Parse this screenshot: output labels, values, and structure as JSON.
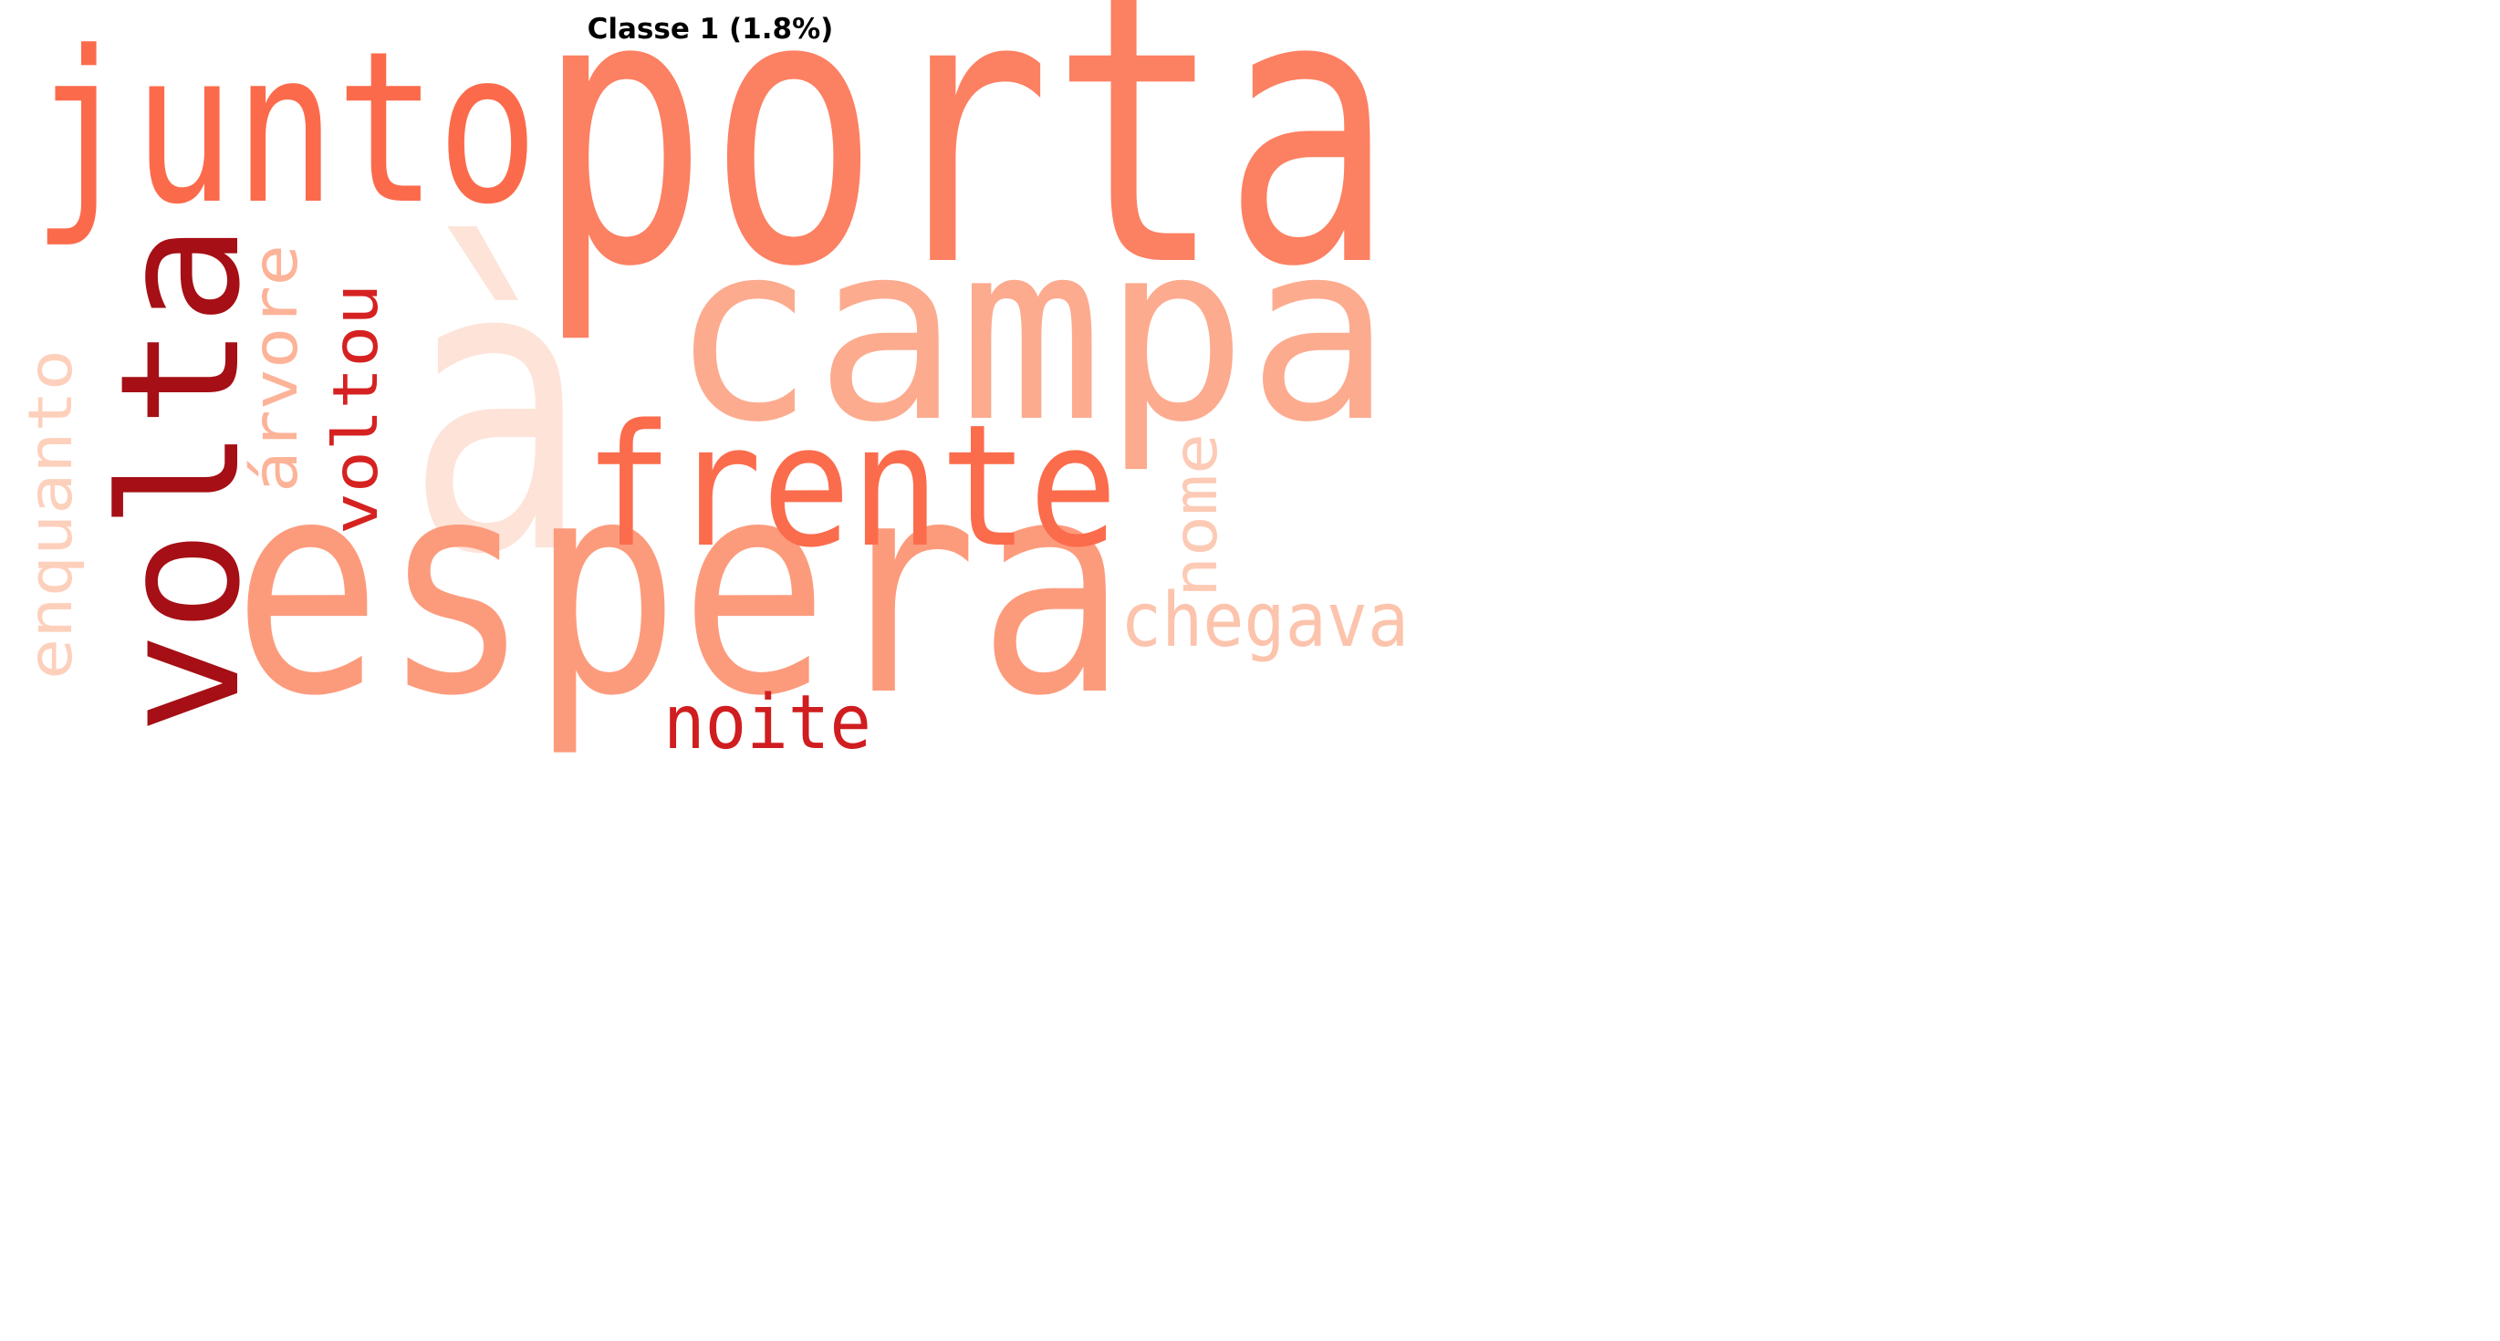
{
  "title": "Classe 1 (1.8%)",
  "words": [
    {
      "text": "à",
      "color": "#fde3d8"
    },
    {
      "text": "porta",
      "color": "#fc8062"
    },
    {
      "text": "campa",
      "color": "#fcab8f"
    },
    {
      "text": "espera",
      "color": "#fc9b7c"
    },
    {
      "text": "junto",
      "color": "#fb6b4b"
    },
    {
      "text": "volta",
      "color": "#a50f15"
    },
    {
      "text": "frente",
      "color": "#fb6c4c"
    },
    {
      "text": "árvore",
      "color": "#fcb398"
    },
    {
      "text": "voltou",
      "color": "#d52221"
    },
    {
      "text": "enquanto",
      "color": "#fdd0bc"
    },
    {
      "text": "nome",
      "color": "#fdcab5"
    },
    {
      "text": "chegava",
      "color": "#fcc4ad"
    },
    {
      "text": "noite",
      "color": "#d01d1f"
    }
  ]
}
